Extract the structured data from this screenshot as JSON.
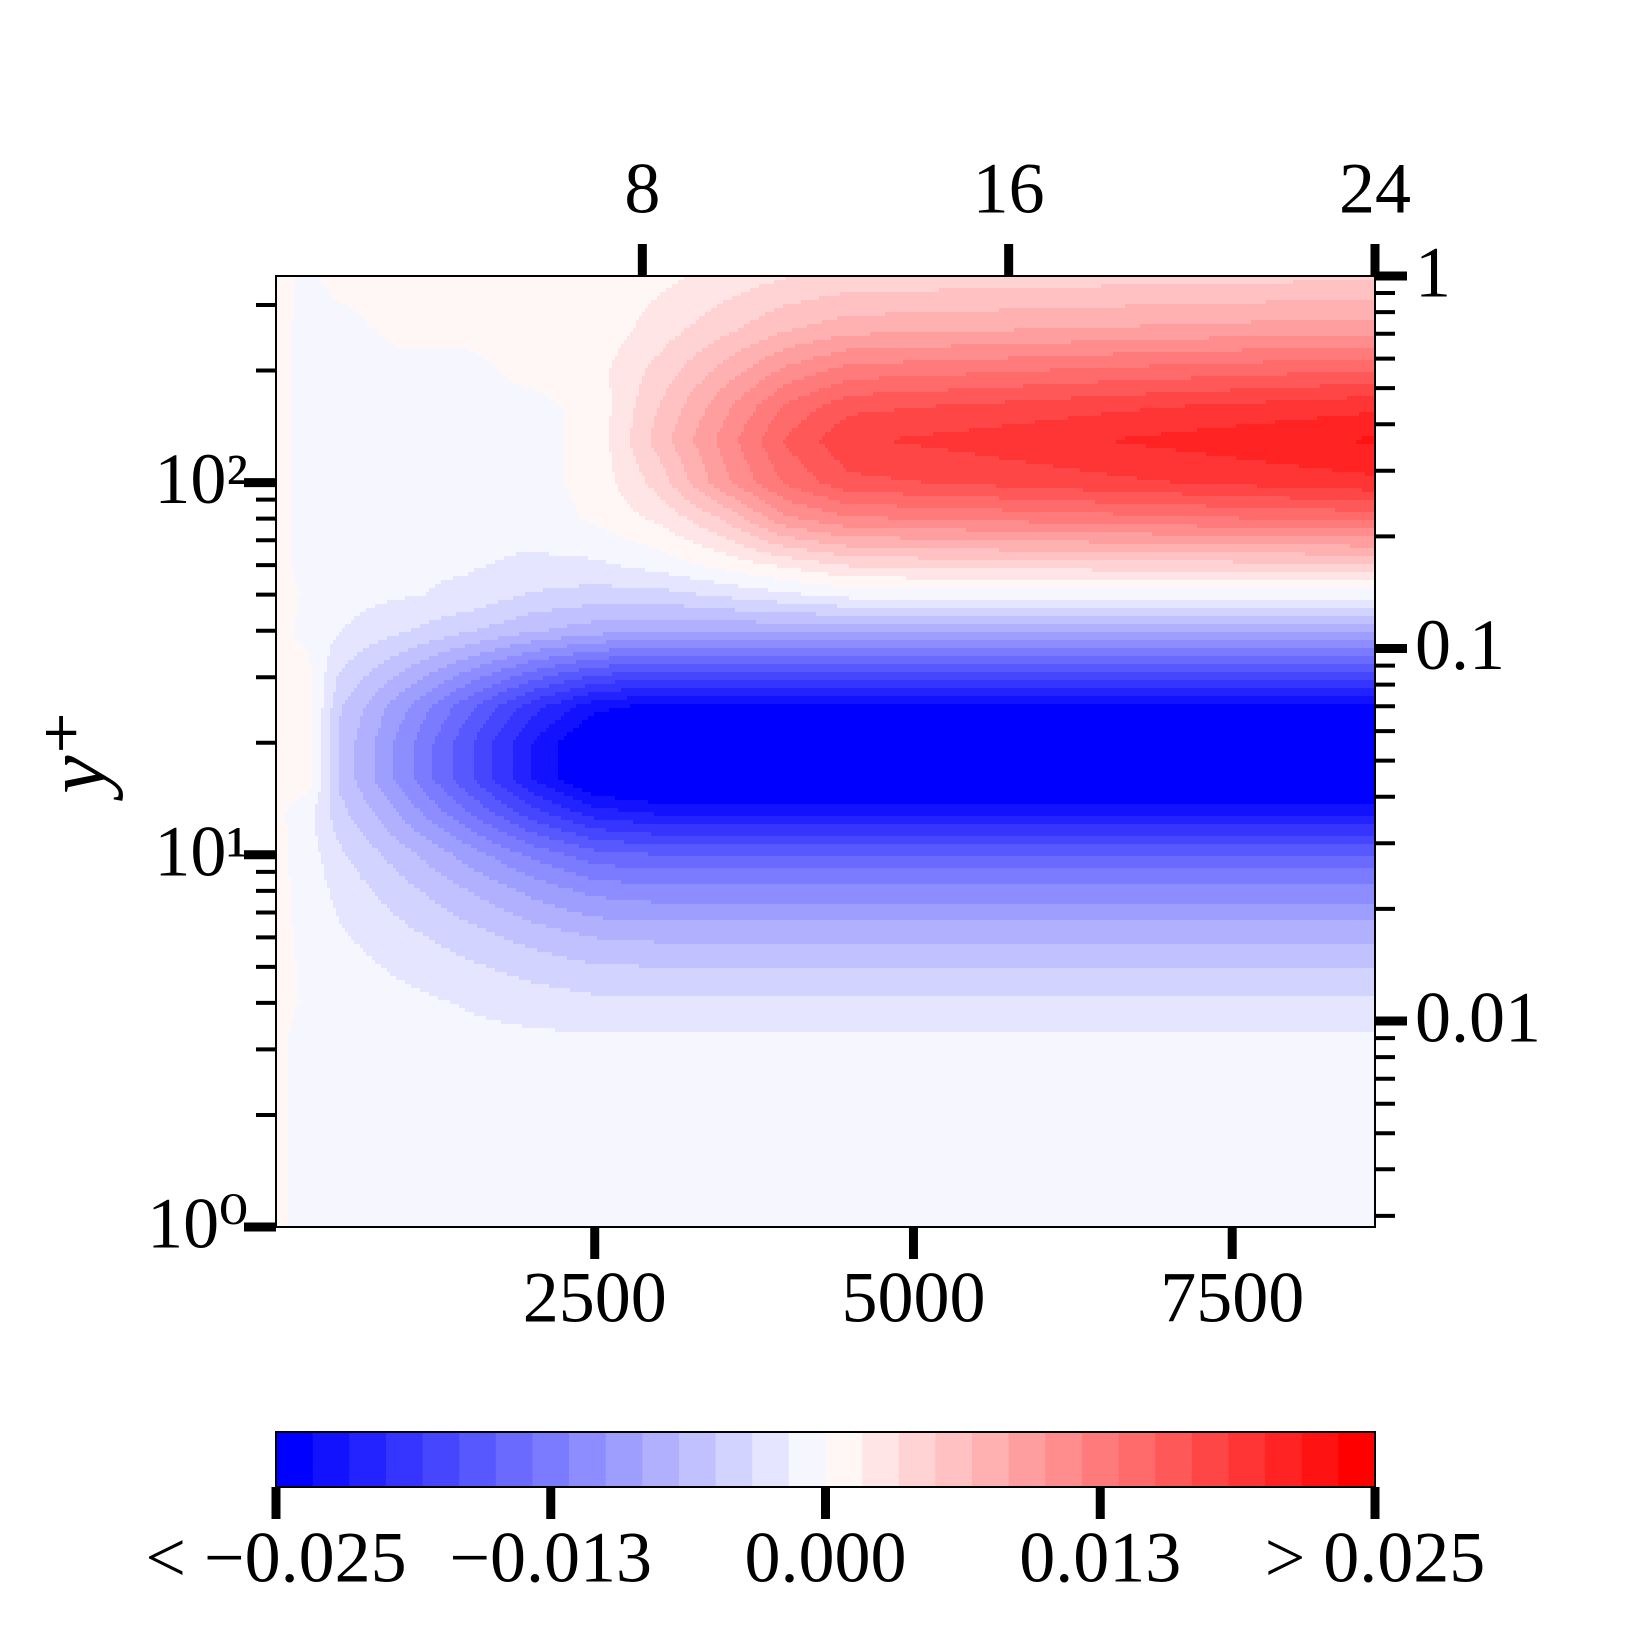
{
  "chart_data": {
    "type": "contour",
    "ylabel": "y⁺",
    "log_y": true,
    "minor_ticks": true,
    "colormap": "bwr",
    "levels": 30,
    "xlim": [
      0,
      8620
    ],
    "xticks": [
      2500,
      5000,
      7500
    ],
    "x2lim": [
      0,
      24
    ],
    "x2ticks": [
      8,
      16,
      24
    ],
    "ylim": [
      1,
      359
    ],
    "yticks": [
      {
        "value": 1,
        "label": "10⁰"
      },
      {
        "value": 10,
        "label": "10¹"
      },
      {
        "value": 100,
        "label": "10²"
      }
    ],
    "y2lim": [
      0.0028,
      1
    ],
    "y2ticks": [
      0.01,
      0.1,
      1
    ],
    "x": [
      0,
      250,
      500,
      1000,
      1500,
      2000,
      2500,
      3000,
      3500,
      4000,
      4500,
      5500,
      6500,
      7500,
      8620
    ],
    "y": [
      1,
      2,
      3,
      4,
      5,
      6,
      8,
      10,
      13,
      16,
      20,
      25,
      30,
      40,
      50,
      60,
      80,
      100,
      130,
      160,
      200,
      260,
      359
    ],
    "z": [
      [
        0.0005,
        -0.001,
        -0.001,
        -0.001,
        -0.001,
        -0.001,
        -0.001,
        -0.001,
        -0.001,
        -0.001,
        -0.001,
        -0.001,
        -0.001,
        -0.001,
        -0.001
      ],
      [
        0.0005,
        -0.001,
        -0.001,
        -0.001,
        -0.001,
        -0.001,
        -0.001,
        -0.001,
        -0.001,
        -0.001,
        -0.001,
        -0.001,
        -0.001,
        -0.001,
        -0.001
      ],
      [
        0.0005,
        -0.001,
        -0.001,
        -0.001,
        -0.001,
        -0.001,
        -0.001,
        -0.001,
        -0.001,
        -0.001,
        -0.001,
        -0.001,
        -0.001,
        -0.001,
        -0.001
      ],
      [
        0.0005,
        -0.0002,
        -0.0006,
        -0.0012,
        -0.0018,
        -0.0024,
        -0.0029,
        -0.003,
        -0.003,
        -0.003,
        -0.003,
        -0.003,
        -0.003,
        -0.003,
        -0.003
      ],
      [
        0.0005,
        -0.0003,
        -0.001,
        -0.002,
        -0.003,
        -0.004,
        -0.0048,
        -0.005,
        -0.005,
        -0.005,
        -0.005,
        -0.005,
        -0.005,
        -0.005,
        -0.005
      ],
      [
        0.0005,
        -0.0004,
        -0.0014,
        -0.0028,
        -0.0042,
        -0.0056,
        -0.0067,
        -0.007,
        -0.007,
        -0.007,
        -0.007,
        -0.007,
        -0.007,
        -0.007,
        -0.007
      ],
      [
        0.0005,
        -0.0006,
        -0.0022,
        -0.0044,
        -0.0066,
        -0.0088,
        -0.0105,
        -0.011,
        -0.011,
        -0.011,
        -0.011,
        -0.011,
        -0.011,
        -0.011,
        -0.011
      ],
      [
        0.0005,
        -0.0008,
        -0.003,
        -0.006,
        -0.009,
        -0.012,
        -0.0143,
        -0.015,
        -0.015,
        -0.015,
        -0.015,
        -0.015,
        -0.015,
        -0.015,
        -0.015
      ],
      [
        0.0005,
        -0.0011,
        -0.0044,
        -0.0088,
        -0.0132,
        -0.0176,
        -0.0209,
        -0.022,
        -0.022,
        -0.022,
        -0.022,
        -0.022,
        -0.022,
        -0.022,
        -0.022
      ],
      [
        0.0005,
        0.001,
        -0.0054,
        -0.0108,
        -0.0162,
        -0.0216,
        -0.0257,
        -0.027,
        -0.027,
        -0.027,
        -0.027,
        -0.027,
        -0.027,
        -0.027,
        -0.027
      ],
      [
        0.0005,
        0.001,
        -0.0054,
        -0.0108,
        -0.0162,
        -0.0216,
        -0.0257,
        -0.027,
        -0.027,
        -0.027,
        -0.027,
        -0.027,
        -0.027,
        -0.027,
        -0.027
      ],
      [
        0.0005,
        0.001,
        -0.0048,
        -0.0096,
        -0.0144,
        -0.0192,
        -0.0228,
        -0.024,
        -0.024,
        -0.024,
        -0.024,
        -0.024,
        -0.024,
        -0.024,
        -0.024
      ],
      [
        0.0005,
        0.0005,
        -0.0036,
        -0.0072,
        -0.0108,
        -0.0144,
        -0.0171,
        -0.018,
        -0.018,
        -0.018,
        -0.018,
        -0.018,
        -0.018,
        -0.018,
        -0.018
      ],
      [
        0.0005,
        -0.0004,
        -0.0016,
        -0.0032,
        -0.0048,
        -0.0064,
        -0.0076,
        -0.008,
        -0.008,
        -0.008,
        -0.008,
        -0.008,
        -0.008,
        -0.008,
        -0.008
      ],
      [
        0.0005,
        -0.0002,
        -0.001,
        -0.0015,
        -0.002,
        -0.0035,
        -0.004,
        -0.004,
        -0.003,
        -0.002,
        -0.001,
        -0.001,
        -0.001,
        -0.001,
        -0.001
      ],
      [
        0.0005,
        -0.0005,
        -0.001,
        -0.0015,
        -0.0015,
        -0.002,
        -0.002,
        -0.001,
        0.0005,
        0.002,
        0.0035,
        0.004,
        0.0042,
        0.0044,
        0.0046
      ],
      [
        0.0005,
        -0.0005,
        -0.001,
        -0.001,
        -0.001,
        -0.001,
        0.0003,
        0.002,
        0.005,
        0.0096,
        0.0114,
        0.012,
        0.0126,
        0.0132,
        0.0138
      ],
      [
        0.0005,
        -0.0005,
        -0.001,
        -0.001,
        -0.001,
        -0.0005,
        0.0005,
        0.004,
        0.0094,
        0.0136,
        0.0162,
        0.017,
        0.0179,
        0.0187,
        0.0196
      ],
      [
        0.0005,
        -0.0005,
        -0.001,
        -0.001,
        -0.001,
        -0.0005,
        0.0005,
        0.0057,
        0.0105,
        0.0152,
        0.0181,
        0.019,
        0.02,
        0.0209,
        0.0219
      ],
      [
        0.0005,
        -0.0005,
        -0.001,
        -0.001,
        -0.0005,
        -0.0005,
        0.0005,
        0.005,
        0.0094,
        0.0136,
        0.0162,
        0.017,
        0.0179,
        0.0187,
        0.0196
      ],
      [
        0.0005,
        -0.0005,
        -0.001,
        -0.0005,
        -0.0005,
        0.0005,
        0.001,
        0.0039,
        0.0072,
        0.0104,
        0.0124,
        0.013,
        0.0137,
        0.0143,
        0.015
      ],
      [
        0.0005,
        -0.0005,
        -0.0005,
        0.0005,
        0.0005,
        0.001,
        0.0005,
        0.0024,
        0.0044,
        0.0064,
        0.0076,
        0.008,
        0.0084,
        0.0088,
        0.0092
      ],
      [
        0.0005,
        -0.0003,
        0.0005,
        0.0005,
        0.0005,
        0.0005,
        0.0005,
        0.0012,
        0.0022,
        0.0032,
        0.0038,
        0.004,
        0.0042,
        0.0044,
        0.0046
      ]
    ],
    "colorbar": {
      "lim": [
        -0.025,
        0.025
      ],
      "ticks": [
        {
          "value": -0.025,
          "label": "< −0.025"
        },
        {
          "value": -0.0125,
          "label": "−0.013"
        },
        {
          "value": 0,
          "label": "0.000"
        },
        {
          "value": 0.0125,
          "label": "0.013"
        },
        {
          "value": 0.025,
          "label": "> 0.025"
        }
      ]
    }
  }
}
